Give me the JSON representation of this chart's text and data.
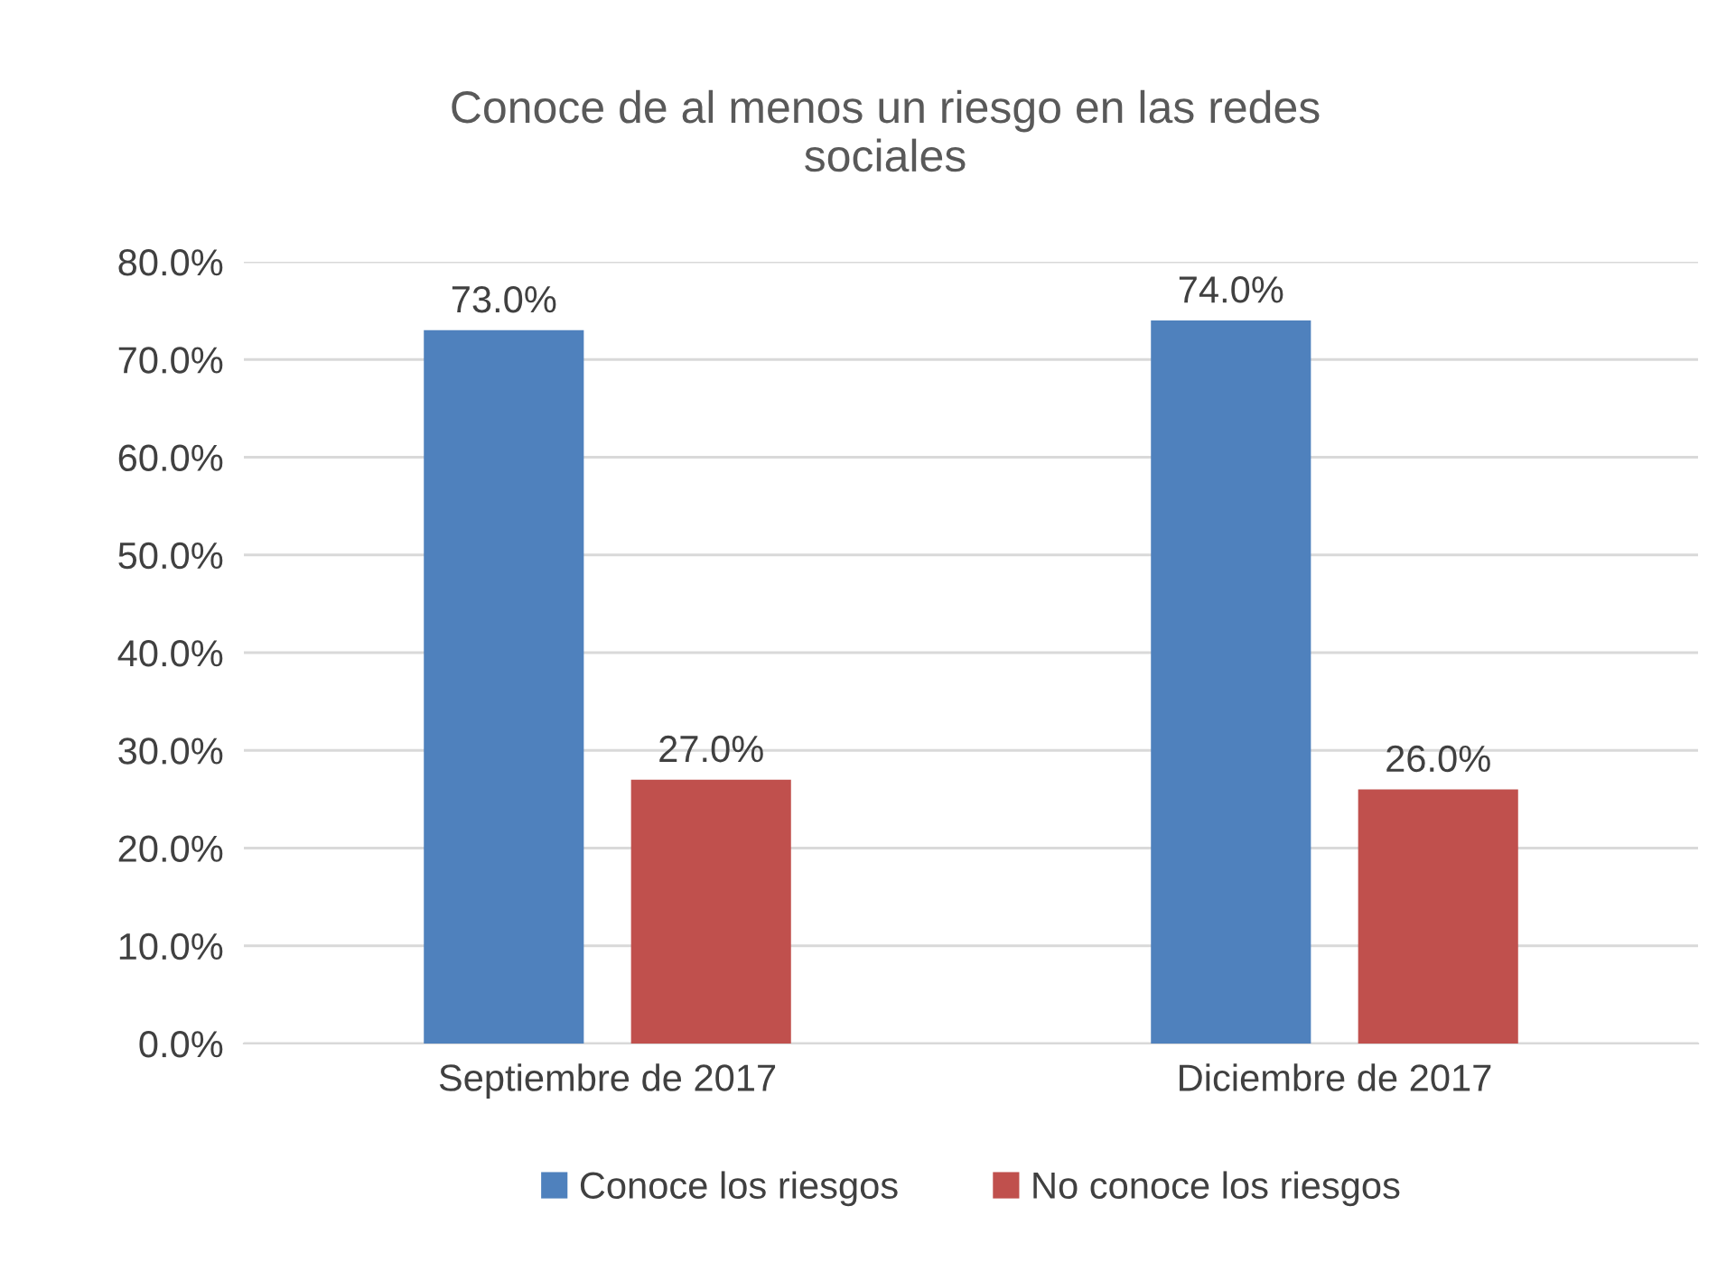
{
  "chart_data": {
    "type": "bar",
    "title": "Conoce de al menos un riesgo en las redes\nsociales",
    "categories": [
      "Septiembre de 2017",
      "Diciembre de 2017"
    ],
    "series": [
      {
        "name": "Conoce los riesgos",
        "color": "#4f81bd",
        "values": [
          73.0,
          74.0
        ],
        "value_labels": [
          "73.0%",
          "74.0%"
        ]
      },
      {
        "name": "No conoce los riesgos",
        "color": "#c0504d",
        "values": [
          27.0,
          26.0
        ],
        "value_labels": [
          "27.0%",
          "26.0%"
        ]
      }
    ],
    "ylim": [
      0,
      80
    ],
    "yticks": [
      {
        "value": 0,
        "label": "0.0%"
      },
      {
        "value": 10,
        "label": "10.0%"
      },
      {
        "value": 20,
        "label": "20.0%"
      },
      {
        "value": 30,
        "label": "30.0%"
      },
      {
        "value": 40,
        "label": "40.0%"
      },
      {
        "value": 50,
        "label": "50.0%"
      },
      {
        "value": 60,
        "label": "60.0%"
      },
      {
        "value": 70,
        "label": "70.0%"
      },
      {
        "value": 80,
        "label": "80.0%"
      }
    ],
    "grid": "y",
    "legend": "bottom"
  }
}
